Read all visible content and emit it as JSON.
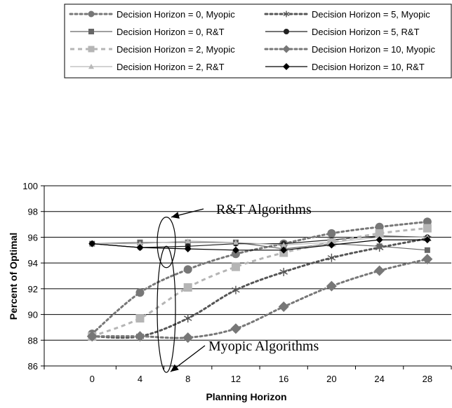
{
  "chart_data": {
    "type": "line",
    "title": "",
    "xlabel": "Planning Horizon",
    "ylabel": "Percent of Optimal",
    "x": [
      0,
      4,
      8,
      12,
      16,
      20,
      24,
      28
    ],
    "xlim": [
      -4,
      30
    ],
    "ylim": [
      86,
      100
    ],
    "yticks": [
      86,
      88,
      90,
      92,
      94,
      96,
      98,
      100
    ],
    "grid": "horizontal",
    "legend_placement": "top",
    "series": [
      {
        "name": "Decision Horizon = 0, Myopic",
        "color": "#777777",
        "dash": "dotted-thick",
        "marker": "circle",
        "values": [
          88.5,
          91.7,
          93.5,
          94.7,
          95.5,
          96.3,
          96.8,
          97.2
        ]
      },
      {
        "name": "Decision Horizon = 5, Myopic",
        "color": "#555555",
        "dash": "dotted-thick",
        "marker": "asterisk",
        "values": [
          88.3,
          88.3,
          89.7,
          91.9,
          93.3,
          94.4,
          95.2,
          95.9
        ]
      },
      {
        "name": "Decision Horizon = 0, R&T",
        "color": "#666666",
        "dash": "solid",
        "marker": "square",
        "values": [
          95.5,
          95.6,
          95.6,
          95.6,
          95.1,
          95.5,
          95.3,
          95.0
        ]
      },
      {
        "name": "Decision Horizon = 5, R&T",
        "color": "#222222",
        "dash": "solid",
        "marker": "circle",
        "values": [
          95.5,
          95.2,
          95.3,
          95.5,
          95.5,
          95.8,
          96.1,
          96.0
        ]
      },
      {
        "name": "Decision Horizon = 2, Myopic",
        "color": "#b5b5b5",
        "dash": "dashed",
        "marker": "square",
        "values": [
          88.3,
          89.7,
          92.1,
          93.7,
          94.8,
          95.6,
          96.3,
          96.7
        ]
      },
      {
        "name": "Decision Horizon = 10, Myopic",
        "color": "#777777",
        "dash": "dotted-thick",
        "marker": "diamond",
        "values": [
          88.3,
          88.3,
          88.2,
          88.9,
          90.6,
          92.2,
          93.4,
          94.3
        ]
      },
      {
        "name": "Decision Horizon = 2, R&T",
        "color": "#b8b8b8",
        "dash": "solid",
        "marker": "triangle",
        "values": [
          95.5,
          95.5,
          95.7,
          95.6,
          95.4,
          95.6,
          96.0,
          96.0
        ]
      },
      {
        "name": "Decision Horizon = 10, R&T",
        "color": "#000000",
        "dash": "solid",
        "marker": "diamond",
        "values": [
          95.5,
          95.2,
          95.1,
          95.0,
          95.0,
          95.4,
          95.8,
          95.8
        ]
      }
    ],
    "annotations": [
      {
        "text": "R&T Algorithms",
        "x": 6.2,
        "y": 95.6
      },
      {
        "text": "Myopic Algorithms",
        "x": 6.2,
        "y": 90.4
      }
    ]
  }
}
